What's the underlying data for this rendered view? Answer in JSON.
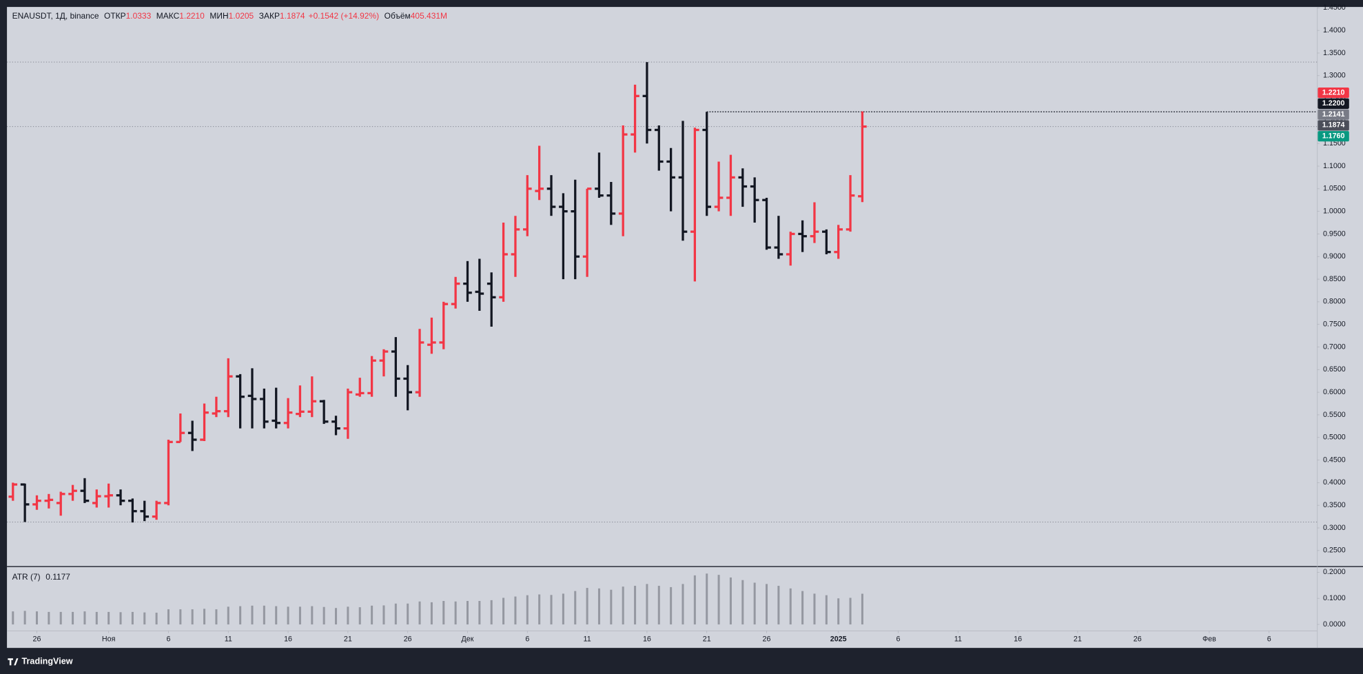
{
  "brand": "TradingView",
  "chart_data": [
    {
      "type": "ohlc",
      "legend": {
        "symbol": "ENAUSDT, 1Д, binance",
        "fields": [
          {
            "label": "ОТКР",
            "value": "1.0333"
          },
          {
            "label": "МАКС",
            "value": "1.2210"
          },
          {
            "label": "МИН",
            "value": "1.0205"
          },
          {
            "label": "ЗАКР",
            "value": "1.1874"
          }
        ],
        "change": "+0.1542 (+14.92%)",
        "volume": {
          "label": "Объём",
          "value": "405.431M"
        }
      },
      "up_color": "#f23645",
      "down_color": "#131722",
      "bars": [
        {
          "o": 0.369,
          "h": 0.4,
          "l": 0.36,
          "c": 0.396
        },
        {
          "o": 0.396,
          "h": 0.398,
          "l": 0.313,
          "c": 0.352
        },
        {
          "o": 0.352,
          "h": 0.372,
          "l": 0.34,
          "c": 0.36
        },
        {
          "o": 0.36,
          "h": 0.375,
          "l": 0.343,
          "c": 0.362
        },
        {
          "o": 0.355,
          "h": 0.38,
          "l": 0.327,
          "c": 0.375
        },
        {
          "o": 0.375,
          "h": 0.395,
          "l": 0.36,
          "c": 0.382
        },
        {
          "o": 0.382,
          "h": 0.41,
          "l": 0.355,
          "c": 0.36
        },
        {
          "o": 0.355,
          "h": 0.385,
          "l": 0.345,
          "c": 0.37
        },
        {
          "o": 0.37,
          "h": 0.398,
          "l": 0.345,
          "c": 0.372
        },
        {
          "o": 0.372,
          "h": 0.385,
          "l": 0.35,
          "c": 0.36
        },
        {
          "o": 0.36,
          "h": 0.365,
          "l": 0.312,
          "c": 0.337
        },
        {
          "o": 0.337,
          "h": 0.36,
          "l": 0.315,
          "c": 0.325
        },
        {
          "o": 0.325,
          "h": 0.36,
          "l": 0.318,
          "c": 0.355
        },
        {
          "o": 0.355,
          "h": 0.495,
          "l": 0.35,
          "c": 0.49
        },
        {
          "o": 0.49,
          "h": 0.553,
          "l": 0.49,
          "c": 0.51
        },
        {
          "o": 0.51,
          "h": 0.537,
          "l": 0.47,
          "c": 0.495
        },
        {
          "o": 0.495,
          "h": 0.575,
          "l": 0.492,
          "c": 0.555
        },
        {
          "o": 0.553,
          "h": 0.59,
          "l": 0.545,
          "c": 0.558
        },
        {
          "o": 0.558,
          "h": 0.675,
          "l": 0.545,
          "c": 0.635
        },
        {
          "o": 0.635,
          "h": 0.64,
          "l": 0.52,
          "c": 0.59
        },
        {
          "o": 0.592,
          "h": 0.653,
          "l": 0.52,
          "c": 0.585
        },
        {
          "o": 0.585,
          "h": 0.608,
          "l": 0.52,
          "c": 0.535
        },
        {
          "o": 0.537,
          "h": 0.61,
          "l": 0.52,
          "c": 0.532
        },
        {
          "o": 0.532,
          "h": 0.587,
          "l": 0.52,
          "c": 0.555
        },
        {
          "o": 0.552,
          "h": 0.615,
          "l": 0.545,
          "c": 0.557
        },
        {
          "o": 0.557,
          "h": 0.635,
          "l": 0.545,
          "c": 0.58
        },
        {
          "o": 0.58,
          "h": 0.583,
          "l": 0.53,
          "c": 0.535
        },
        {
          "o": 0.535,
          "h": 0.548,
          "l": 0.505,
          "c": 0.52
        },
        {
          "o": 0.52,
          "h": 0.608,
          "l": 0.497,
          "c": 0.6
        },
        {
          "o": 0.595,
          "h": 0.632,
          "l": 0.59,
          "c": 0.598
        },
        {
          "o": 0.598,
          "h": 0.68,
          "l": 0.59,
          "c": 0.67
        },
        {
          "o": 0.67,
          "h": 0.695,
          "l": 0.635,
          "c": 0.69
        },
        {
          "o": 0.69,
          "h": 0.722,
          "l": 0.59,
          "c": 0.63
        },
        {
          "o": 0.63,
          "h": 0.66,
          "l": 0.56,
          "c": 0.6
        },
        {
          "o": 0.6,
          "h": 0.74,
          "l": 0.59,
          "c": 0.71
        },
        {
          "o": 0.705,
          "h": 0.765,
          "l": 0.685,
          "c": 0.71
        },
        {
          "o": 0.71,
          "h": 0.8,
          "l": 0.695,
          "c": 0.795
        },
        {
          "o": 0.795,
          "h": 0.855,
          "l": 0.785,
          "c": 0.84
        },
        {
          "o": 0.84,
          "h": 0.89,
          "l": 0.8,
          "c": 0.82
        },
        {
          "o": 0.822,
          "h": 0.895,
          "l": 0.78,
          "c": 0.818
        },
        {
          "o": 0.84,
          "h": 0.865,
          "l": 0.745,
          "c": 0.81
        },
        {
          "o": 0.81,
          "h": 0.975,
          "l": 0.8,
          "c": 0.905
        },
        {
          "o": 0.905,
          "h": 0.99,
          "l": 0.855,
          "c": 0.96
        },
        {
          "o": 0.96,
          "h": 1.08,
          "l": 0.945,
          "c": 1.05
        },
        {
          "o": 1.045,
          "h": 1.145,
          "l": 1.025,
          "c": 1.05
        },
        {
          "o": 1.05,
          "h": 1.08,
          "l": 0.99,
          "c": 1.01
        },
        {
          "o": 1.01,
          "h": 1.04,
          "l": 0.85,
          "c": 1.0
        },
        {
          "o": 1.0,
          "h": 1.07,
          "l": 0.85,
          "c": 0.9
        },
        {
          "o": 0.9,
          "h": 1.05,
          "l": 0.855,
          "c": 1.05
        },
        {
          "o": 1.05,
          "h": 1.13,
          "l": 1.03,
          "c": 1.035
        },
        {
          "o": 1.035,
          "h": 1.065,
          "l": 0.97,
          "c": 0.995
        },
        {
          "o": 0.995,
          "h": 1.19,
          "l": 0.945,
          "c": 1.17
        },
        {
          "o": 1.17,
          "h": 1.28,
          "l": 1.13,
          "c": 1.255
        },
        {
          "o": 1.255,
          "h": 1.33,
          "l": 1.15,
          "c": 1.18
        },
        {
          "o": 1.18,
          "h": 1.19,
          "l": 1.09,
          "c": 1.11
        },
        {
          "o": 1.11,
          "h": 1.14,
          "l": 1.0,
          "c": 1.075
        },
        {
          "o": 1.075,
          "h": 1.2,
          "l": 0.935,
          "c": 0.955
        },
        {
          "o": 0.955,
          "h": 1.185,
          "l": 0.845,
          "c": 1.18
        },
        {
          "o": 1.18,
          "h": 1.22,
          "l": 0.99,
          "c": 1.01
        },
        {
          "o": 1.01,
          "h": 1.11,
          "l": 1.0,
          "c": 1.03
        },
        {
          "o": 1.03,
          "h": 1.125,
          "l": 0.99,
          "c": 1.075
        },
        {
          "o": 1.075,
          "h": 1.095,
          "l": 1.01,
          "c": 1.055
        },
        {
          "o": 1.055,
          "h": 1.075,
          "l": 0.975,
          "c": 1.025
        },
        {
          "o": 1.025,
          "h": 1.03,
          "l": 0.915,
          "c": 0.92
        },
        {
          "o": 0.92,
          "h": 0.99,
          "l": 0.895,
          "c": 0.905
        },
        {
          "o": 0.905,
          "h": 0.955,
          "l": 0.88,
          "c": 0.95
        },
        {
          "o": 0.95,
          "h": 0.98,
          "l": 0.91,
          "c": 0.945
        },
        {
          "o": 0.945,
          "h": 1.02,
          "l": 0.93,
          "c": 0.955
        },
        {
          "o": 0.955,
          "h": 0.96,
          "l": 0.905,
          "c": 0.91
        },
        {
          "o": 0.91,
          "h": 0.97,
          "l": 0.895,
          "c": 0.96
        },
        {
          "o": 0.96,
          "h": 1.08,
          "l": 0.955,
          "c": 1.035
        },
        {
          "o": 1.0333,
          "h": 1.221,
          "l": 1.0205,
          "c": 1.1874
        }
      ],
      "xlim": [
        -0.5,
        109
      ],
      "xticks": [
        {
          "value": 2,
          "label": "26"
        },
        {
          "value": 8,
          "label": "Ноя"
        },
        {
          "value": 13,
          "label": "6"
        },
        {
          "value": 18,
          "label": "11"
        },
        {
          "value": 23,
          "label": "16"
        },
        {
          "value": 28,
          "label": "21"
        },
        {
          "value": 33,
          "label": "26"
        },
        {
          "value": 38,
          "label": "Дек"
        },
        {
          "value": 43,
          "label": "6"
        },
        {
          "value": 48,
          "label": "11"
        },
        {
          "value": 53,
          "label": "16"
        },
        {
          "value": 58,
          "label": "21"
        },
        {
          "value": 63,
          "label": "26"
        },
        {
          "value": 69,
          "label": "2025"
        },
        {
          "value": 74,
          "label": "6"
        },
        {
          "value": 79,
          "label": "11"
        },
        {
          "value": 84,
          "label": "16"
        },
        {
          "value": 89,
          "label": "21"
        },
        {
          "value": 94,
          "label": "26"
        },
        {
          "value": 100,
          "label": "Фев"
        },
        {
          "value": 105,
          "label": "6"
        }
      ],
      "ylim": [
        0.2154,
        1.4519
      ],
      "yticks": [
        {
          "value": 0.25,
          "label": "0.2500"
        },
        {
          "value": 0.3,
          "label": "0.3000"
        },
        {
          "value": 0.35,
          "label": "0.3500"
        },
        {
          "value": 0.4,
          "label": "0.4000"
        },
        {
          "value": 0.45,
          "label": "0.4500"
        },
        {
          "value": 0.5,
          "label": "0.5000"
        },
        {
          "value": 0.55,
          "label": "0.5500"
        },
        {
          "value": 0.6,
          "label": "0.6000"
        },
        {
          "value": 0.65,
          "label": "0.6500"
        },
        {
          "value": 0.7,
          "label": "0.7000"
        },
        {
          "value": 0.75,
          "label": "0.7500"
        },
        {
          "value": 0.8,
          "label": "0.8000"
        },
        {
          "value": 0.85,
          "label": "0.8500"
        },
        {
          "value": 0.9,
          "label": "0.9000"
        },
        {
          "value": 0.95,
          "label": "0.9500"
        },
        {
          "value": 1.0,
          "label": "1.0000"
        },
        {
          "value": 1.05,
          "label": "1.0500"
        },
        {
          "value": 1.1,
          "label": "1.1000"
        },
        {
          "value": 1.15,
          "label": "1.1500"
        },
        {
          "value": 1.2,
          "label": "1.2000"
        },
        {
          "value": 1.25,
          "label": "1.2500"
        },
        {
          "value": 1.3,
          "label": "1.3000"
        },
        {
          "value": 1.35,
          "label": "1.3500"
        },
        {
          "value": 1.4,
          "label": "1.4000"
        },
        {
          "value": 1.45,
          "label": "1.4500"
        }
      ],
      "hlines": [
        1.33,
        1.1874,
        0.313
      ],
      "ray": {
        "value": 1.22,
        "start": 58
      },
      "price_labels": [
        {
          "value": 1.221,
          "label": "1.2210",
          "color": "#f23645"
        },
        {
          "value": 1.22,
          "label": "1.2200",
          "color": "#131722"
        },
        {
          "value": 1.2141,
          "label": "1.2141",
          "color": "#787b86"
        },
        {
          "value": 1.1874,
          "label": "1.1874",
          "color": "#4a4e59"
        },
        {
          "value": 1.176,
          "label": "1.1760",
          "color": "#089981"
        }
      ]
    },
    {
      "type": "bar",
      "title": "ATR (7)",
      "last": "0.1177",
      "color": "#9598a1",
      "values": [
        0.05,
        0.052,
        0.05,
        0.048,
        0.048,
        0.048,
        0.05,
        0.048,
        0.048,
        0.047,
        0.048,
        0.046,
        0.045,
        0.058,
        0.058,
        0.058,
        0.06,
        0.058,
        0.068,
        0.07,
        0.072,
        0.072,
        0.07,
        0.068,
        0.068,
        0.07,
        0.067,
        0.063,
        0.068,
        0.066,
        0.072,
        0.073,
        0.08,
        0.08,
        0.088,
        0.085,
        0.09,
        0.088,
        0.09,
        0.09,
        0.093,
        0.102,
        0.107,
        0.112,
        0.115,
        0.113,
        0.118,
        0.128,
        0.14,
        0.138,
        0.133,
        0.145,
        0.148,
        0.155,
        0.148,
        0.143,
        0.155,
        0.188,
        0.195,
        0.19,
        0.18,
        0.17,
        0.16,
        0.155,
        0.148,
        0.138,
        0.128,
        0.118,
        0.112,
        0.1,
        0.102,
        0.1177
      ],
      "ylim": [
        -0.0233,
        0.22
      ],
      "yticks": [
        {
          "value": 0,
          "label": "0.0000"
        },
        {
          "value": 0.1,
          "label": "0.1000"
        },
        {
          "value": 0.2,
          "label": "0.2000"
        }
      ]
    }
  ]
}
